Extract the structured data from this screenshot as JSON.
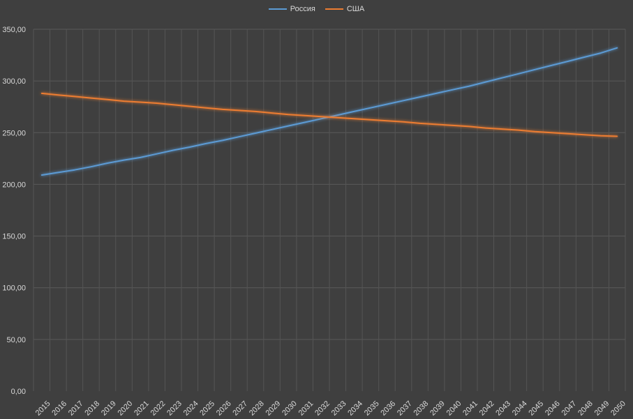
{
  "chart_data": {
    "type": "line",
    "title": "",
    "xlabel": "",
    "ylabel": "",
    "legend_position": "top-center",
    "grid": true,
    "ylim": [
      0,
      350
    ],
    "y_ticks": [
      "0,00",
      "50,00",
      "100,00",
      "150,00",
      "200,00",
      "250,00",
      "300,00",
      "350,00"
    ],
    "categories": [
      "2015",
      "2016",
      "2017",
      "2018",
      "2019",
      "2020",
      "2021",
      "2022",
      "2023",
      "2024",
      "2025",
      "2026",
      "2027",
      "2028",
      "2029",
      "2030",
      "2031",
      "2032",
      "2033",
      "2034",
      "2035",
      "2036",
      "2037",
      "2038",
      "2039",
      "2040",
      "2041",
      "2042",
      "2043",
      "2044",
      "2045",
      "2046",
      "2047",
      "2048",
      "2049",
      "2050"
    ],
    "series": [
      {
        "name": "Россия",
        "color": "#5b9bd5",
        "values": [
          209,
          211.5,
          214,
          217,
          220.5,
          223.5,
          226,
          229.5,
          233,
          236,
          239.5,
          242.5,
          246,
          249.5,
          253,
          256.5,
          260,
          263.5,
          267,
          270.5,
          274,
          277.5,
          281,
          284.5,
          288,
          291.5,
          295,
          299,
          303,
          307,
          311,
          315,
          319,
          323,
          327,
          332
        ]
      },
      {
        "name": "США",
        "color": "#ed7d31",
        "values": [
          288,
          286.5,
          285,
          283.5,
          282,
          280.5,
          279.5,
          278.5,
          277,
          275.5,
          274,
          272.5,
          271.5,
          270.5,
          269,
          267.5,
          266.5,
          265.5,
          264.5,
          263.5,
          262.5,
          261.5,
          260.5,
          259,
          258,
          257,
          256,
          254.5,
          253.5,
          252.5,
          251,
          250,
          249,
          248,
          247,
          246.5
        ]
      }
    ]
  }
}
